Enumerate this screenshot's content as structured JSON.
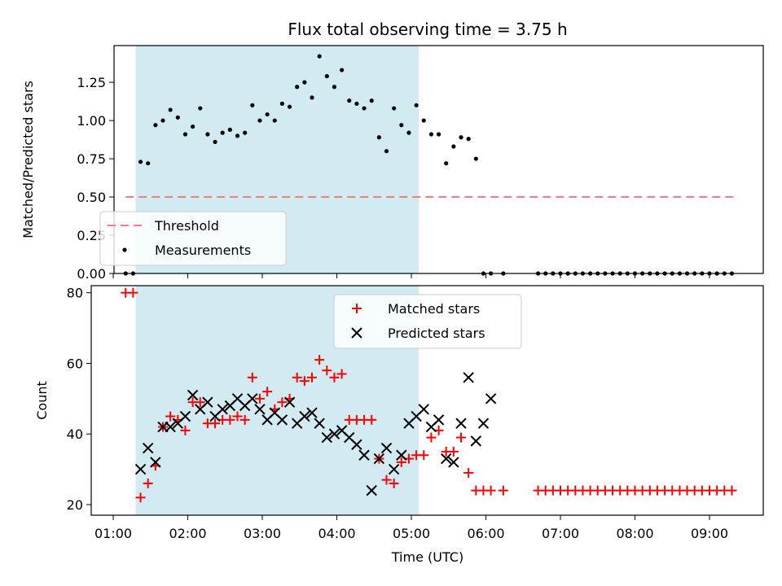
{
  "chart_data": [
    {
      "type": "scatter",
      "title": "Flux total observing time = 3.75 h",
      "xlabel": "",
      "ylabel": "Matched/Predicted stars",
      "xlim": [
        "00:50",
        "09:45"
      ],
      "ylim": [
        0,
        1.49
      ],
      "yticks": [
        "0.00",
        "0.25",
        "0.50",
        "0.75",
        "1.00",
        "1.25"
      ],
      "highlight_span": [
        "01:18",
        "05:06"
      ],
      "threshold": {
        "name": "Threshold",
        "value": 0.5,
        "x_range": [
          "01:10",
          "09:20"
        ],
        "color": "#f08080"
      },
      "legend": {
        "placement": "lower-left",
        "entries": [
          "Threshold",
          "Measurements"
        ]
      },
      "series": [
        {
          "name": "Measurements",
          "color": "#000000",
          "x": [
            "01:10",
            "01:16",
            "01:22",
            "01:28",
            "01:34",
            "01:40",
            "01:46",
            "01:52",
            "01:58",
            "02:04",
            "02:10",
            "02:16",
            "02:22",
            "02:28",
            "02:34",
            "02:40",
            "02:46",
            "02:52",
            "02:58",
            "03:04",
            "03:10",
            "03:16",
            "03:22",
            "03:28",
            "03:34",
            "03:40",
            "03:46",
            "03:52",
            "03:58",
            "04:04",
            "04:10",
            "04:16",
            "04:22",
            "04:28",
            "04:34",
            "04:40",
            "04:46",
            "04:52",
            "04:58",
            "05:04",
            "05:10",
            "05:16",
            "05:22",
            "05:28",
            "05:34",
            "05:40",
            "05:46",
            "05:52",
            "05:58",
            "06:04",
            "06:14",
            "06:42",
            "06:48",
            "06:54",
            "07:00",
            "07:06",
            "07:12",
            "07:18",
            "07:24",
            "07:30",
            "07:36",
            "07:42",
            "07:48",
            "07:54",
            "08:00",
            "08:06",
            "08:12",
            "08:18",
            "08:24",
            "08:30",
            "08:36",
            "08:42",
            "08:48",
            "08:54",
            "09:00",
            "09:06",
            "09:12",
            "09:18"
          ],
          "y": [
            0.0,
            0.0,
            0.73,
            0.72,
            0.97,
            1.0,
            1.07,
            1.02,
            0.91,
            0.96,
            1.08,
            0.91,
            0.86,
            0.92,
            0.94,
            0.9,
            0.92,
            1.1,
            1.0,
            1.04,
            1.0,
            1.11,
            1.09,
            1.22,
            1.25,
            1.15,
            1.42,
            1.29,
            1.22,
            1.33,
            1.13,
            1.11,
            1.08,
            1.13,
            0.89,
            0.8,
            1.08,
            0.97,
            0.92,
            1.1,
            1.0,
            0.91,
            0.91,
            0.72,
            0.83,
            0.89,
            0.88,
            0.75,
            0.0,
            0.0,
            0.0,
            0.0,
            0.0,
            0.0,
            0.0,
            0.0,
            0.0,
            0.0,
            0.0,
            0.0,
            0.0,
            0.0,
            0.0,
            0.0,
            0.0,
            0.0,
            0.0,
            0.0,
            0.0,
            0.0,
            0.0,
            0.0,
            0.0,
            0.0,
            0.0,
            0.0,
            0.0,
            0.0
          ]
        }
      ]
    },
    {
      "type": "scatter",
      "title": "",
      "xlabel": "Time (UTC)",
      "ylabel": "Count",
      "xlim": [
        "00:50",
        "09:45"
      ],
      "ylim": [
        17,
        82
      ],
      "yticks": [
        "20",
        "40",
        "60",
        "80"
      ],
      "xticks": [
        "01:00",
        "02:00",
        "03:00",
        "04:00",
        "05:00",
        "06:00",
        "07:00",
        "08:00",
        "09:00"
      ],
      "highlight_span": [
        "01:18",
        "05:06"
      ],
      "legend": {
        "placement": "top-center",
        "entries": [
          "Matched stars",
          "Predicted stars"
        ]
      },
      "series": [
        {
          "name": "Matched stars",
          "marker": "plus",
          "color": "#ff0000",
          "x": [
            "01:10",
            "01:16",
            "01:22",
            "01:28",
            "01:34",
            "01:40",
            "01:46",
            "01:52",
            "01:58",
            "02:04",
            "02:10",
            "02:16",
            "02:22",
            "02:28",
            "02:34",
            "02:40",
            "02:46",
            "02:52",
            "02:58",
            "03:04",
            "03:10",
            "03:16",
            "03:22",
            "03:28",
            "03:34",
            "03:40",
            "03:46",
            "03:52",
            "03:58",
            "04:04",
            "04:10",
            "04:16",
            "04:22",
            "04:28",
            "04:34",
            "04:40",
            "04:46",
            "04:52",
            "04:58",
            "05:04",
            "05:10",
            "05:16",
            "05:22",
            "05:28",
            "05:34",
            "05:40",
            "05:46",
            "05:52",
            "05:58",
            "06:04",
            "06:14",
            "06:42",
            "06:48",
            "06:54",
            "07:00",
            "07:06",
            "07:12",
            "07:18",
            "07:24",
            "07:30",
            "07:36",
            "07:42",
            "07:48",
            "07:54",
            "08:00",
            "08:06",
            "08:12",
            "08:18",
            "08:24",
            "08:30",
            "08:36",
            "08:42",
            "08:48",
            "08:54",
            "09:00",
            "09:06",
            "09:12",
            "09:18"
          ],
          "y": [
            80,
            80,
            22,
            26,
            31,
            42,
            45,
            44,
            41,
            49,
            49,
            43,
            43,
            44,
            44,
            45,
            44,
            56,
            50,
            52,
            47,
            49,
            50,
            56,
            55,
            56,
            61,
            58,
            56,
            57,
            44,
            44,
            44,
            44,
            33,
            27,
            26,
            32,
            33,
            34,
            34,
            39,
            41,
            35,
            35,
            39,
            29,
            24,
            24,
            24,
            24,
            24,
            24,
            24,
            24,
            24,
            24,
            24,
            24,
            24,
            24,
            24,
            24,
            24,
            24,
            24,
            24,
            24,
            24,
            24,
            24,
            24,
            24,
            24,
            24,
            24,
            24,
            24
          ]
        },
        {
          "name": "Predicted stars",
          "marker": "x",
          "color": "#000000",
          "x": [
            "01:22",
            "01:28",
            "01:34",
            "01:40",
            "01:46",
            "01:52",
            "01:58",
            "02:04",
            "02:10",
            "02:16",
            "02:22",
            "02:28",
            "02:34",
            "02:40",
            "02:46",
            "02:52",
            "02:58",
            "03:04",
            "03:10",
            "03:16",
            "03:22",
            "03:28",
            "03:34",
            "03:40",
            "03:46",
            "03:52",
            "03:58",
            "04:04",
            "04:10",
            "04:16",
            "04:22",
            "04:28",
            "04:34",
            "04:40",
            "04:46",
            "04:52",
            "04:58",
            "05:04",
            "05:10",
            "05:16",
            "05:22",
            "05:28",
            "05:34",
            "05:40",
            "05:46",
            "05:52",
            "05:58",
            "06:04"
          ],
          "y": [
            30,
            36,
            32,
            42,
            42,
            43,
            45,
            51,
            47,
            49,
            45,
            47,
            48,
            50,
            48,
            50,
            47,
            44,
            46,
            44,
            49,
            43,
            45,
            46,
            43,
            39,
            40,
            41,
            39,
            37,
            34,
            24,
            33,
            36,
            30,
            34,
            43,
            45,
            47,
            42,
            44,
            33,
            32,
            43,
            56,
            38,
            43,
            50
          ]
        }
      ]
    }
  ]
}
